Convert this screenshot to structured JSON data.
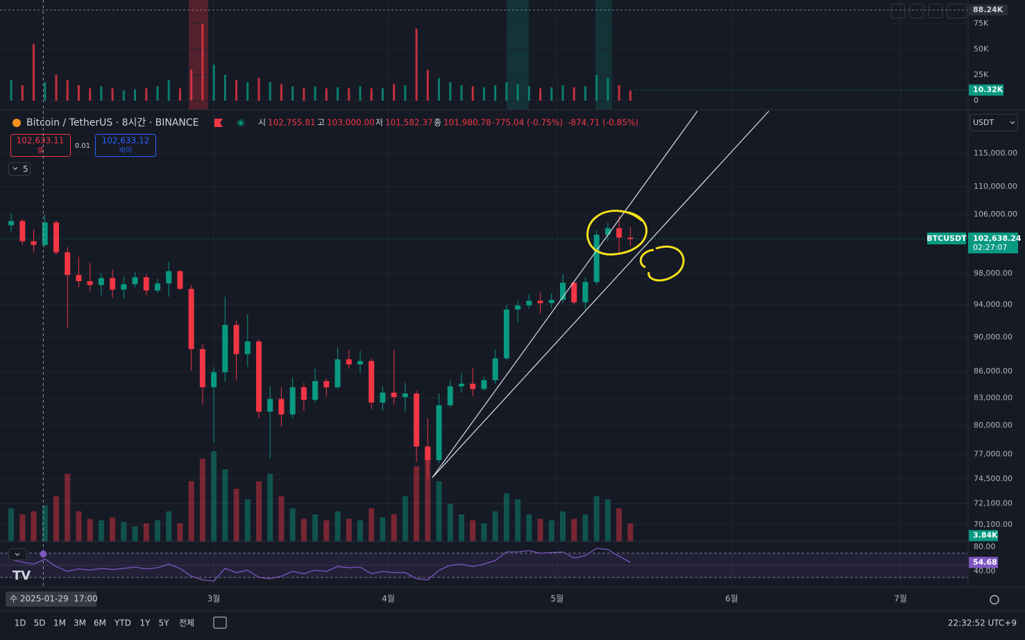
{
  "ui": {
    "legend": {
      "open_label": "시",
      "open": "102,755.81",
      "high_label": "고",
      "high": "103,000.00",
      "low_label": "저",
      "low": "101,582.37",
      "close_label": "종",
      "close": "101,980.78",
      "change": "-775.04 (-0.75%)",
      "change2": "-874.71 (-0.85%)"
    },
    "sell": {
      "price": "102,633.11",
      "label": "셀"
    },
    "spread": "0.01",
    "buy": {
      "price": "102,633.12",
      "label": "바이"
    },
    "indicators_count": "5",
    "currency": "USDT",
    "ranges": [
      "1D",
      "5D",
      "1M",
      "3M",
      "6M",
      "YTD",
      "1Y",
      "5Y",
      "전체"
    ],
    "clock": "22:32:52 UTC+9"
  },
  "chart_data": {
    "type": "candlestick",
    "title": "Bitcoin / TetherUS · 8시간 · BINANCE",
    "symbol": "BTCUSDT",
    "countdown": "02:27:07",
    "colors": {
      "up": "#089981",
      "down": "#f23645"
    },
    "x": [
      "2025-01-24",
      "2025-01-26",
      "2025-01-28",
      "2025-01-30",
      "2025-02-01",
      "2025-02-03",
      "2025-02-05",
      "2025-02-07",
      "2025-02-09",
      "2025-02-11",
      "2025-02-13",
      "2025-02-15",
      "2025-02-17",
      "2025-02-19",
      "2025-02-21",
      "2025-02-23",
      "2025-02-25",
      "2025-02-27",
      "2025-03-01",
      "2025-03-03",
      "2025-03-05",
      "2025-03-07",
      "2025-03-09",
      "2025-03-11",
      "2025-03-13",
      "2025-03-15",
      "2025-03-17",
      "2025-03-19",
      "2025-03-21",
      "2025-03-23",
      "2025-03-25",
      "2025-03-27",
      "2025-03-29",
      "2025-03-31",
      "2025-04-02",
      "2025-04-04",
      "2025-04-06",
      "2025-04-08",
      "2025-04-10",
      "2025-04-12",
      "2025-04-14",
      "2025-04-16",
      "2025-04-18",
      "2025-04-20",
      "2025-04-22",
      "2025-04-24",
      "2025-04-26",
      "2025-04-28",
      "2025-04-30",
      "2025-05-02",
      "2025-05-04",
      "2025-05-06",
      "2025-05-08",
      "2025-05-10",
      "2025-05-12",
      "2025-05-14"
    ],
    "open": [
      104500,
      105100,
      102300,
      101800,
      104900,
      100800,
      97800,
      97000,
      96500,
      97400,
      95900,
      96600,
      97500,
      95800,
      96700,
      98300,
      96000,
      88600,
      84200,
      85900,
      91500,
      88000,
      89500,
      81500,
      82900,
      81200,
      84200,
      82800,
      84900,
      84200,
      87400,
      86800,
      87200,
      82500,
      83600,
      83100,
      83500,
      77800,
      76400,
      82200,
      84300,
      84600,
      84000,
      85000,
      87500,
      93400,
      93900,
      94500,
      94200,
      94600,
      96800,
      94300,
      96900,
      103200,
      104100,
      102800
    ],
    "high": [
      106200,
      105400,
      103900,
      106000,
      105200,
      101500,
      100200,
      99400,
      98000,
      98500,
      97600,
      98200,
      97900,
      97300,
      99500,
      98500,
      96500,
      89200,
      86500,
      95000,
      92000,
      92800,
      89800,
      84300,
      84200,
      85300,
      84700,
      86300,
      85200,
      88800,
      88500,
      88400,
      87500,
      84300,
      88500,
      84700,
      83800,
      80800,
      83500,
      85000,
      85800,
      86400,
      85400,
      88500,
      94000,
      94500,
      95300,
      95600,
      95400,
      97900,
      97000,
      97500,
      103800,
      104900,
      105800,
      104300
    ],
    "low": [
      103500,
      101800,
      100800,
      101500,
      100500,
      91200,
      96200,
      95700,
      95200,
      94900,
      94800,
      96200,
      95200,
      95500,
      95000,
      95900,
      86100,
      82300,
      78200,
      84800,
      85000,
      86500,
      80800,
      76600,
      79900,
      80800,
      81600,
      82500,
      83200,
      84000,
      86300,
      85800,
      81800,
      81600,
      82300,
      81500,
      76200,
      74500,
      76100,
      82000,
      83600,
      83200,
      83800,
      84600,
      87300,
      91800,
      93500,
      92900,
      93600,
      94200,
      94000,
      93400,
      96600,
      102300,
      100800,
      101600
    ],
    "close": [
      105100,
      102300,
      101800,
      104900,
      100800,
      97800,
      97000,
      96500,
      97400,
      95900,
      96600,
      97500,
      95800,
      96700,
      98300,
      96000,
      88600,
      84200,
      85900,
      91500,
      88000,
      89500,
      81500,
      82900,
      81200,
      84200,
      82800,
      84900,
      84200,
      87400,
      86800,
      87200,
      82500,
      83600,
      83100,
      83500,
      77800,
      76400,
      82200,
      84300,
      84600,
      84000,
      85000,
      87500,
      93400,
      93900,
      94500,
      94200,
      94600,
      96800,
      94300,
      96900,
      103200,
      104100,
      102800,
      102600
    ],
    "xlim": [
      "2025-01-23",
      "2025-07-13"
    ],
    "xticks": [
      {
        "value": "2025-03-01",
        "label": "3월"
      },
      {
        "value": "2025-04-01",
        "label": "4월"
      },
      {
        "value": "2025-05-01",
        "label": "5월"
      },
      {
        "value": "2025-06-01",
        "label": "6월"
      },
      {
        "value": "2025-07-01",
        "label": "7월"
      }
    ],
    "crosshair": {
      "value": "2025-01-29T17:00",
      "label": "수 2025-01-29  17:00"
    },
    "ylim": [
      68550,
      121700
    ],
    "y_scale": "log",
    "grid": true,
    "yticks": [
      {
        "value": 115000,
        "label": "115,000.00"
      },
      {
        "value": 110000,
        "label": "110,000.00"
      },
      {
        "value": 106000,
        "label": "106,000.00"
      },
      {
        "value": 98000,
        "label": "98,000.00"
      },
      {
        "value": 94000,
        "label": "94,000.00"
      },
      {
        "value": 90000,
        "label": "90,000.00"
      },
      {
        "value": 86000,
        "label": "86,000.00"
      },
      {
        "value": 83000,
        "label": "83,000.00"
      },
      {
        "value": 80000,
        "label": "80,000.00"
      },
      {
        "value": 77000,
        "label": "77,000.00"
      },
      {
        "value": 74500,
        "label": "74,500.00"
      },
      {
        "value": 72100,
        "label": "72,100.00"
      },
      {
        "value": 70100,
        "label": "70,100.00"
      }
    ],
    "last_price": {
      "value": 102638.24,
      "label": "102,638.24"
    },
    "volume": {
      "values": [
        22,
        18,
        20,
        24,
        30,
        45,
        20,
        15,
        14,
        16,
        13,
        10,
        12,
        14,
        20,
        12,
        40,
        55,
        60,
        48,
        35,
        28,
        40,
        45,
        30,
        22,
        15,
        18,
        14,
        20,
        15,
        14,
        22,
        16,
        18,
        30,
        50,
        60,
        40,
        25,
        18,
        14,
        12,
        20,
        32,
        28,
        18,
        15,
        14,
        20,
        15,
        18,
        30,
        28,
        22,
        12
      ],
      "ylim": [
        0,
        60
      ],
      "last": {
        "value": 3.84,
        "label": "3.84K"
      }
    },
    "top_volume": {
      "values": [
        20,
        15,
        55,
        18,
        25,
        20,
        15,
        12,
        14,
        12,
        10,
        11,
        12,
        14,
        20,
        12,
        30,
        75,
        35,
        25,
        20,
        18,
        22,
        18,
        16,
        14,
        12,
        14,
        12,
        13,
        12,
        14,
        12,
        12,
        16,
        15,
        70,
        30,
        22,
        18,
        15,
        14,
        13,
        15,
        18,
        16,
        14,
        12,
        13,
        15,
        13,
        14,
        25,
        22,
        15,
        10
      ],
      "ylim": [
        0,
        92.6
      ],
      "yticks": [
        {
          "value": 75,
          "label": "75K"
        },
        {
          "value": 50,
          "label": "50K"
        },
        {
          "value": 25,
          "label": "25K"
        },
        0
      ],
      "max_line": {
        "value": 88.24,
        "label": "88.24K"
      },
      "last": {
        "value": 10.32,
        "label": "10.32K"
      }
    },
    "rsi": {
      "values": [
        60,
        55,
        52,
        60,
        48,
        40,
        44,
        42,
        45,
        43,
        45,
        47,
        44,
        46,
        52,
        45,
        32,
        26,
        24,
        45,
        38,
        42,
        30,
        28,
        32,
        40,
        36,
        42,
        40,
        48,
        46,
        47,
        36,
        40,
        38,
        38,
        28,
        26,
        42,
        50,
        52,
        48,
        52,
        58,
        72,
        72,
        74,
        70,
        71,
        72,
        62,
        66,
        78,
        76,
        65,
        55
      ],
      "color": "#7e57c2",
      "ylim": [
        15,
        87
      ],
      "yticks": [
        {
          "value": 80,
          "label": "80.00"
        },
        {
          "value": 40,
          "label": "40.00"
        }
      ],
      "levels": [
        70,
        50,
        30
      ],
      "last": 54.68
    }
  }
}
